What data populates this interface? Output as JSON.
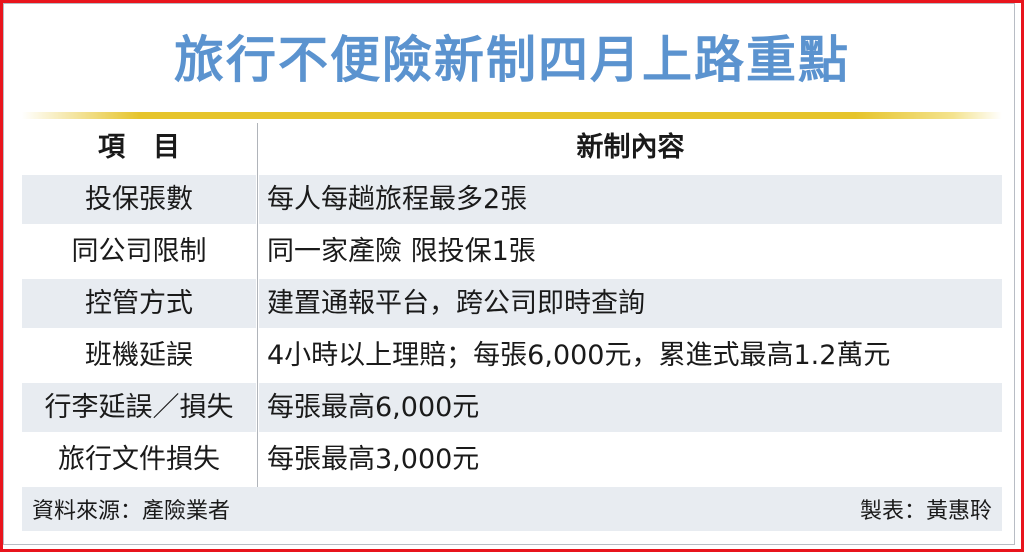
{
  "title": "旅行不便險新制四月上路重點",
  "table": {
    "headers": [
      "項目",
      "新制內容"
    ],
    "rows": [
      {
        "item": "投保張數",
        "content": "每人每趟旅程最多2張"
      },
      {
        "item": "同公司限制",
        "content": "同一家產險 限投保1張"
      },
      {
        "item": "控管方式",
        "content": "建置通報平台，跨公司即時查詢"
      },
      {
        "item": "班機延誤",
        "content": "4小時以上理賠；每張6,000元，累進式最高1.2萬元"
      },
      {
        "item": "行李延誤／損失",
        "content": "每張最高6,000元"
      },
      {
        "item": "旅行文件損失",
        "content": "每張最高3,000元"
      }
    ]
  },
  "footer": {
    "source": "資料來源：產險業者",
    "author": "製表：黃惠聆"
  },
  "colors": {
    "title": "#5b93cf",
    "rule": "#e6c42a",
    "row_alt": "#e8ecf1",
    "border": "#e8141c"
  }
}
